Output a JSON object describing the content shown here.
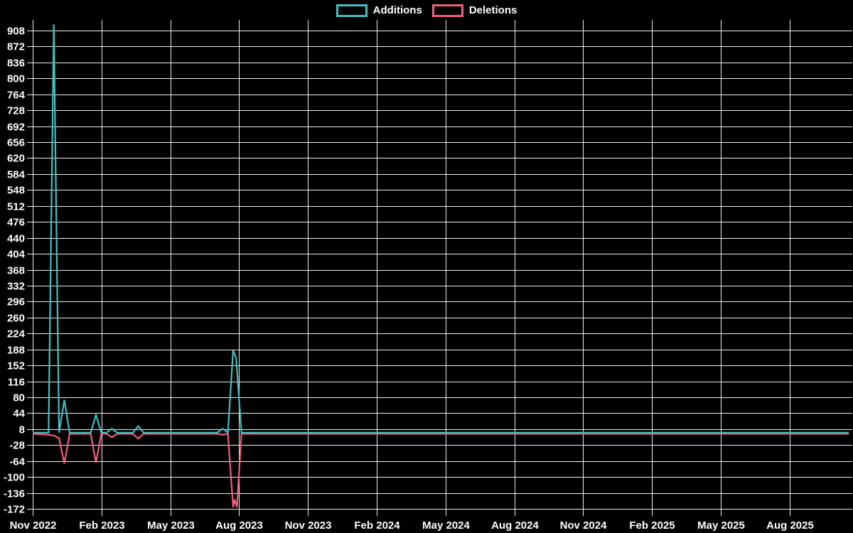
{
  "chart_data": {
    "type": "line",
    "title": "",
    "background": "#000000",
    "grid": true,
    "grid_color": "#efefef",
    "text_color": "#ffffff",
    "legend_position": "top-center",
    "x_axis": {
      "start_date": "2022-11-01",
      "interval_months": 3,
      "tick_labels": [
        "Nov 2022",
        "Feb 2023",
        "May 2023",
        "Aug 2023",
        "Nov 2023",
        "Feb 2024",
        "May 2024",
        "Aug 2024",
        "Nov 2024",
        "Feb 2025",
        "May 2025",
        "Aug 2025"
      ]
    },
    "y_axis": {
      "min": -172,
      "max": 908,
      "tick_step": 36,
      "tick_labels": [
        "908",
        "872",
        "836",
        "800",
        "764",
        "728",
        "692",
        "656",
        "620",
        "584",
        "548",
        "512",
        "476",
        "440",
        "404",
        "368",
        "332",
        "296",
        "260",
        "224",
        "188",
        "152",
        "116",
        "80",
        "44",
        "8",
        "-28",
        "-64",
        "-100",
        "-136",
        "-172"
      ]
    },
    "series": [
      {
        "name": "Additions",
        "color": "#45bfbf",
        "points": [
          [
            "2022-11-01",
            0
          ],
          [
            "2022-11-22",
            0
          ],
          [
            "2022-11-29",
            922
          ],
          [
            "2022-12-06",
            0
          ],
          [
            "2022-12-13",
            74
          ],
          [
            "2022-12-20",
            0
          ],
          [
            "2023-01-17",
            0
          ],
          [
            "2023-01-24",
            40
          ],
          [
            "2023-01-31",
            0
          ],
          [
            "2023-02-07",
            0
          ],
          [
            "2023-02-14",
            9
          ],
          [
            "2023-02-21",
            0
          ],
          [
            "2023-03-14",
            0
          ],
          [
            "2023-03-21",
            15
          ],
          [
            "2023-03-28",
            0
          ],
          [
            "2023-07-04",
            0
          ],
          [
            "2023-07-11",
            9
          ],
          [
            "2023-07-18",
            0
          ],
          [
            "2023-07-25",
            186
          ],
          [
            "2023-07-29",
            168
          ],
          [
            "2023-08-05",
            0
          ],
          [
            "2025-10-19",
            0
          ]
        ]
      },
      {
        "name": "Deletions",
        "color": "#f25f7f",
        "points": [
          [
            "2022-11-01",
            0
          ],
          [
            "2022-11-22",
            -2
          ],
          [
            "2022-11-29",
            -4
          ],
          [
            "2022-12-06",
            -10
          ],
          [
            "2022-12-13",
            -67
          ],
          [
            "2022-12-20",
            0
          ],
          [
            "2023-01-17",
            0
          ],
          [
            "2023-01-24",
            -65
          ],
          [
            "2023-01-31",
            0
          ],
          [
            "2023-02-07",
            0
          ],
          [
            "2023-02-14",
            -8
          ],
          [
            "2023-02-21",
            0
          ],
          [
            "2023-03-14",
            0
          ],
          [
            "2023-03-21",
            -11
          ],
          [
            "2023-03-28",
            0
          ],
          [
            "2023-07-04",
            0
          ],
          [
            "2023-07-11",
            -2
          ],
          [
            "2023-07-18",
            0
          ],
          [
            "2023-07-25",
            -166
          ],
          [
            "2023-07-27",
            -148
          ],
          [
            "2023-07-30",
            -166
          ],
          [
            "2023-08-05",
            0
          ],
          [
            "2025-10-19",
            0
          ]
        ]
      }
    ]
  },
  "legend": {
    "items": [
      {
        "label": "Additions"
      },
      {
        "label": "Deletions"
      }
    ]
  }
}
